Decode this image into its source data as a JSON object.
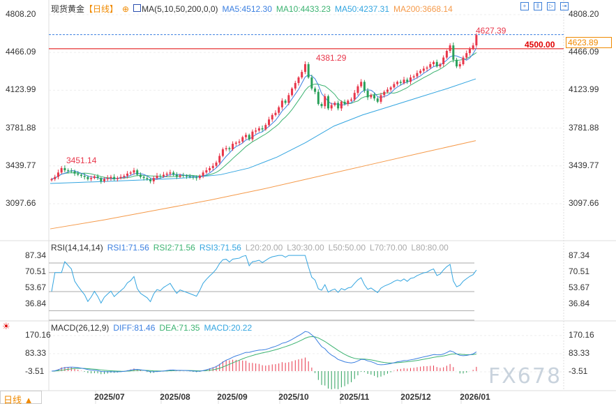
{
  "header": {
    "symbol": "现货黄金",
    "period": "【日线】",
    "ma_title": "MA(5,10,50,200,0,0)",
    "ma5": "MA5:4512.30",
    "ma10": "MA10:4433.23",
    "ma50": "MA50:4237.31",
    "ma200": "MA200:3668.14"
  },
  "price_axis": [
    "4808.20",
    "4466.09",
    "4123.99",
    "3781.88",
    "3439.77",
    "3097.66"
  ],
  "annotations": {
    "high": "4627.39",
    "oct_high": "4381.29",
    "jul_high": "3451.14",
    "line_level": "4500.00",
    "current": "4623.89"
  },
  "rsi": {
    "title": "RSI(14,14,14)",
    "rsi1": "RSI1:71.56",
    "rsi2": "RSI2:71.56",
    "rsi3": "RSI3:71.56",
    "l20": "L20:20.00",
    "l30": "L30:30.00",
    "l50": "L50:50.00",
    "l70": "L70:70.00",
    "l80": "L80:80.00",
    "ticks": [
      "87.34",
      "70.51",
      "53.67",
      "36.84"
    ]
  },
  "macd": {
    "title": "MACD(26,12,9)",
    "diff": "DIFF:81.46",
    "dea": "DEA:71.35",
    "macd": "MACD:20.22",
    "ticks": [
      "170.16",
      "83.33",
      "-3.51"
    ]
  },
  "time_axis": [
    "2025/07",
    "2025/08",
    "2025/09",
    "2025/10",
    "2025/11",
    "2025/12",
    "2026/01"
  ],
  "period_button": "日线 ▲",
  "watermark": "FX678",
  "colors": {
    "up": "#e8364a",
    "down": "#2aa05a",
    "ma5": "#3b7fe0",
    "ma10": "#3cb371",
    "ma50": "#33a5e0",
    "ma200": "#f59a4a",
    "level": "#e00000"
  },
  "chart_data": {
    "type": "candlestick",
    "closes": [
      3320,
      3340,
      3380,
      3420,
      3400,
      3395,
      3390,
      3370,
      3360,
      3350,
      3340,
      3320,
      3330,
      3345,
      3330,
      3300,
      3320,
      3330,
      3340,
      3320,
      3330,
      3340,
      3350,
      3370,
      3380,
      3400,
      3360,
      3340,
      3330,
      3320,
      3300,
      3330,
      3350,
      3345,
      3360,
      3370,
      3380,
      3360,
      3340,
      3355,
      3350,
      3345,
      3340,
      3335,
      3330,
      3350,
      3380,
      3400,
      3420,
      3440,
      3470,
      3530,
      3590,
      3600,
      3590,
      3640,
      3650,
      3660,
      3700,
      3720,
      3680,
      3750,
      3760,
      3780,
      3770,
      3810,
      3860,
      3900,
      3920,
      3970,
      4030,
      4010,
      4080,
      4140,
      4190,
      4240,
      4290,
      4360,
      4240,
      4140,
      4110,
      4000,
      3980,
      4070,
      3960,
      3990,
      4010,
      3960,
      4020,
      4000,
      4030,
      4040,
      4100,
      4160,
      4200,
      4120,
      4060,
      4080,
      4050,
      4020,
      4080,
      4110,
      4130,
      4150,
      4180,
      4200,
      4190,
      4220,
      4200,
      4240,
      4250,
      4280,
      4300,
      4320,
      4330,
      4360,
      4380,
      4340,
      4360,
      4420,
      4480,
      4530,
      4400,
      4340,
      4360,
      4420,
      4460,
      4500,
      4530,
      4624
    ],
    "ma50_points": [
      3281,
      3290,
      3300,
      3310,
      3320,
      3335,
      3360,
      3420,
      3520,
      3650,
      3800,
      3900,
      3980,
      4060,
      4140,
      4227
    ],
    "ma200_points": [
      2870,
      2950,
      3040,
      3130,
      3230,
      3340,
      3450,
      3560,
      3668
    ],
    "price_range": [
      3097.66,
      4808.2
    ]
  }
}
